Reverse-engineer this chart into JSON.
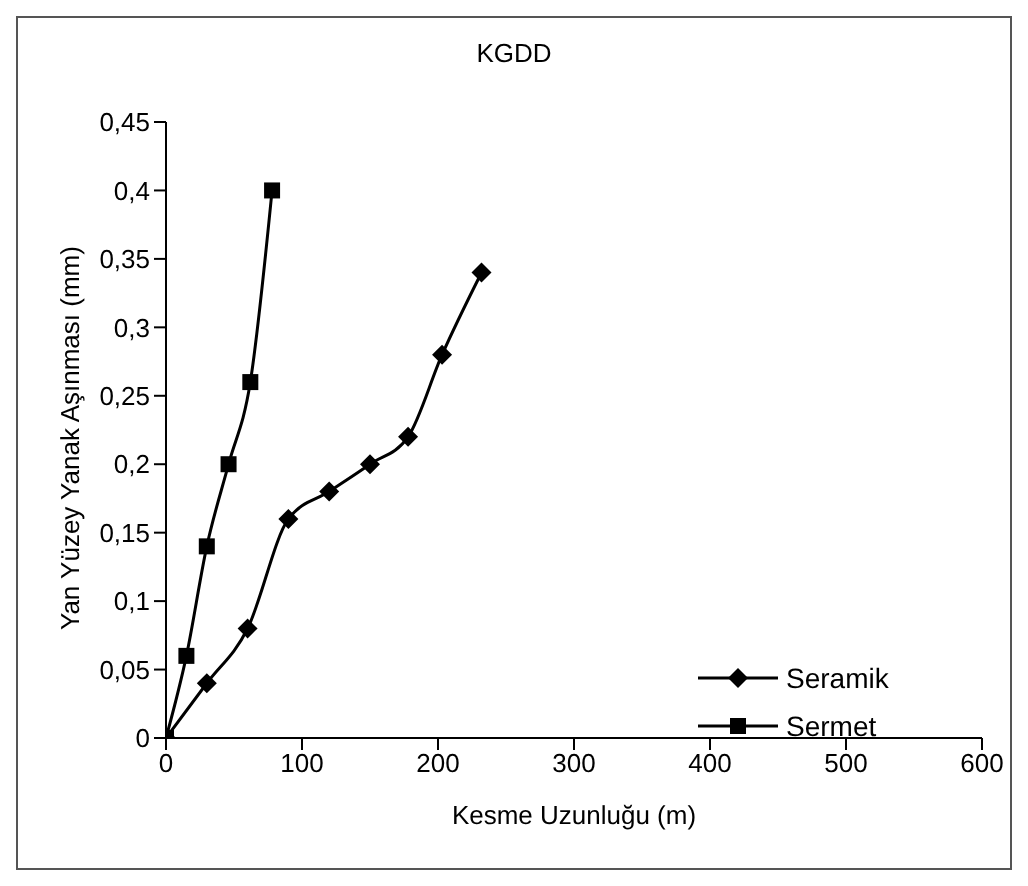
{
  "chart_data": {
    "type": "line",
    "title": "KGDD",
    "xlabel": "Kesme Uzunluğu (m)",
    "ylabel": "Yan Yüzey Yanak Aşınması (mm)",
    "xlim": [
      0,
      600
    ],
    "xticks": [
      0,
      100,
      200,
      300,
      400,
      500,
      600
    ],
    "ylim": [
      0,
      0.45
    ],
    "yticks": [
      0,
      {
        "value": 0.05,
        "label": "0,05"
      },
      {
        "value": 0.1,
        "label": "0,1"
      },
      {
        "value": 0.15,
        "label": "0,15"
      },
      {
        "value": 0.2,
        "label": "0,2"
      },
      {
        "value": 0.25,
        "label": "0,25"
      },
      {
        "value": 0.3,
        "label": "0,3"
      },
      {
        "value": 0.35,
        "label": "0,35"
      },
      {
        "value": 0.4,
        "label": "0,4"
      },
      {
        "value": 0.45,
        "label": "0,45"
      }
    ],
    "grid": false,
    "legend": "bottom right",
    "series": [
      {
        "name": "Seramik",
        "color": "#000000",
        "marker": "diamond",
        "x": [
          0,
          30,
          60,
          90,
          120,
          150,
          178,
          203,
          232
        ],
        "values": [
          0,
          0.04,
          0.08,
          0.16,
          0.18,
          0.2,
          0.22,
          0.28,
          0.34
        ]
      },
      {
        "name": "Sermet",
        "color": "#000000",
        "marker": "square",
        "x": [
          0,
          15,
          30,
          46,
          62,
          78
        ],
        "values": [
          0,
          0.06,
          0.14,
          0.2,
          0.26,
          0.4
        ]
      }
    ]
  }
}
